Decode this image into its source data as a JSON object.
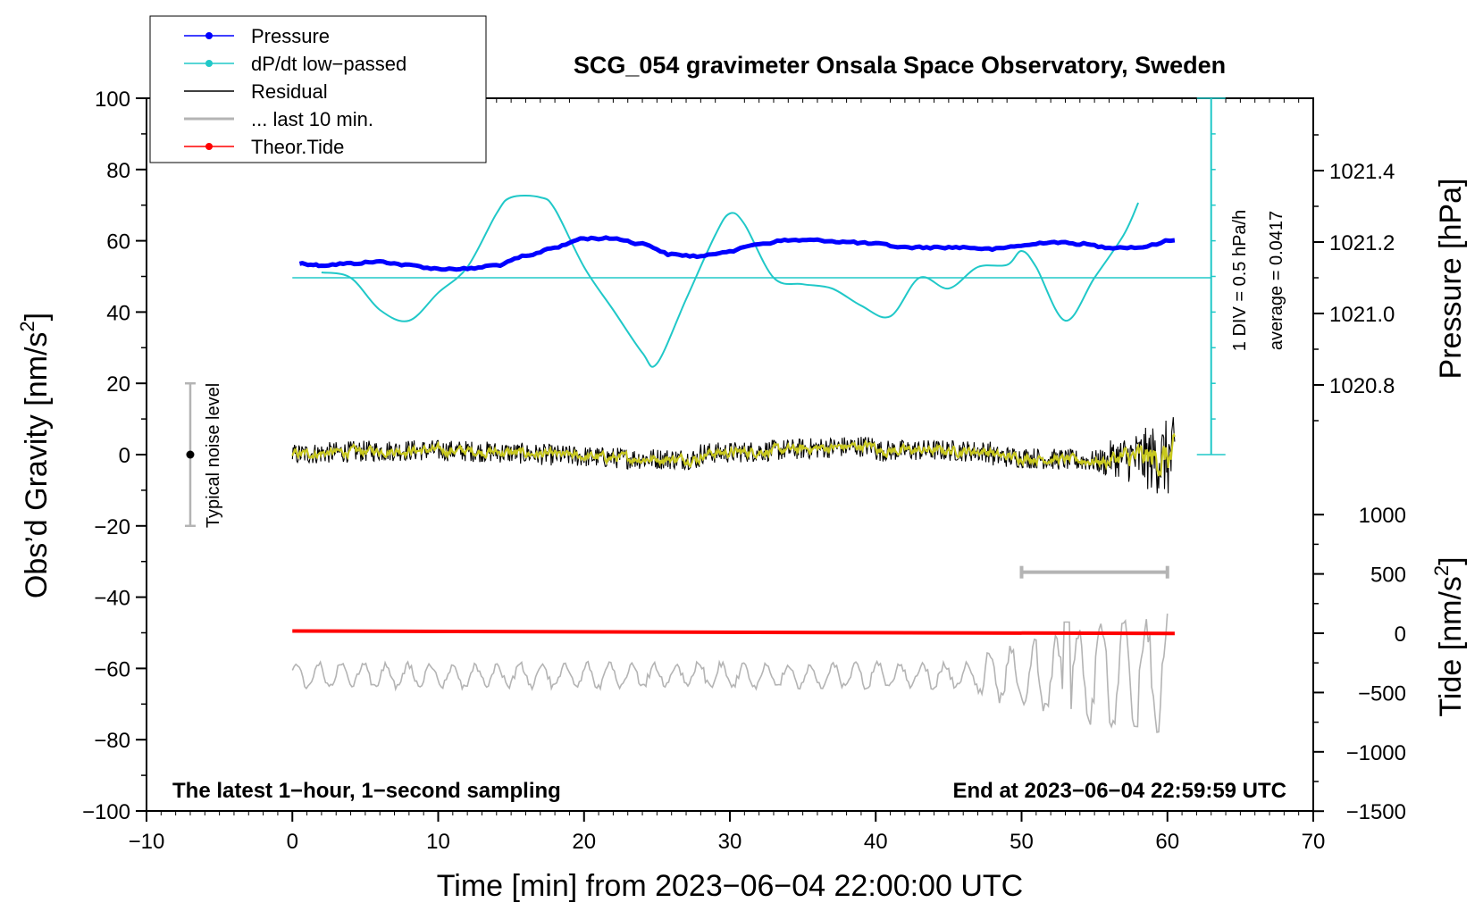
{
  "chart_data": {
    "type": "line",
    "title": "SCG_054 gravimeter Onsala Space Observatory, Sweden",
    "xlabel": "Time [min] from 2023−06−04 22:00:00 UTC",
    "ylabel_left": "Obs’d Gravity [nm/s²]",
    "ylabel_left_main": "Obs’d Gravity [nm/s",
    "ylabel_left_sup": "2",
    "ylabel_left_tail": "]",
    "ylabel_pressure": "Pressure [hPa]",
    "ylabel_tide_main": "Tide [nm/s",
    "ylabel_tide_sup": "2",
    "ylabel_tide_tail": "]",
    "xlim": [
      -10,
      70
    ],
    "ylim_left": [
      -100,
      100
    ],
    "x_ticks": [
      -10,
      0,
      10,
      20,
      30,
      40,
      50,
      60,
      70
    ],
    "x_tick_labels": [
      "−10",
      "0",
      "10",
      "20",
      "30",
      "40",
      "50",
      "60",
      "70"
    ],
    "y_ticks_left": [
      100,
      80,
      60,
      40,
      20,
      0,
      -20,
      -40,
      -60,
      -80,
      -100
    ],
    "y_tick_labels_left": [
      "100",
      "80",
      "60",
      "40",
      "20",
      "0",
      "−20",
      "−40",
      "−60",
      "−80",
      "−100"
    ],
    "pressure_axis": {
      "ticks": [
        1021.4,
        1021.2,
        1021.0,
        1020.8
      ],
      "tick_labels": [
        "1021.4",
        "1021.2",
        "1021.0",
        "1020.8"
      ],
      "range_hpa": [
        1020.6,
        1021.6
      ]
    },
    "tide_axis": {
      "ticks": [
        1000,
        500,
        0,
        -500,
        -1000,
        -1500
      ],
      "tick_labels": [
        "1000",
        "500",
        "0",
        "−500",
        "−1000",
        "−1500"
      ],
      "range": [
        -1500,
        1000
      ]
    },
    "legend": [
      {
        "label": "Pressure",
        "color": "#0000ff",
        "marker": true
      },
      {
        "label": "dP/dt low−passed",
        "color": "#20c8c8",
        "marker": true
      },
      {
        "label": "Residual",
        "color": "#000000",
        "marker": false
      },
      {
        "label": "... last 10 min.",
        "color": "#b4b4b4",
        "marker": false
      },
      {
        "label": "Theor.Tide",
        "color": "#ff0000",
        "marker": true
      }
    ],
    "series": [
      {
        "name": "Pressure",
        "unit": "hPa",
        "color": "#0000ff",
        "x": [
          0.5,
          2,
          4,
          6,
          8,
          10,
          12,
          14,
          16,
          18,
          20,
          22,
          24,
          26,
          28,
          30,
          32,
          34,
          36,
          38,
          40,
          42,
          44,
          46,
          48,
          50,
          52,
          54,
          56,
          58,
          60.5
        ],
        "values": [
          1021.14,
          1021.135,
          1021.14,
          1021.145,
          1021.135,
          1021.125,
          1021.125,
          1021.135,
          1021.16,
          1021.185,
          1021.21,
          1021.21,
          1021.195,
          1021.165,
          1021.16,
          1021.175,
          1021.195,
          1021.205,
          1021.205,
          1021.2,
          1021.195,
          1021.185,
          1021.185,
          1021.185,
          1021.18,
          1021.19,
          1021.2,
          1021.195,
          1021.185,
          1021.185,
          1021.205
        ]
      },
      {
        "name": "dP/dt low−passed",
        "unit": "hPa/h",
        "color": "#20c8c8",
        "x": [
          2,
          4,
          6,
          8,
          10,
          12,
          14,
          15,
          17,
          18,
          20,
          22,
          24,
          25,
          27,
          29,
          30,
          31,
          33,
          35,
          37,
          39,
          41,
          43,
          45,
          47,
          49,
          50,
          51,
          53,
          55,
          57,
          58
        ],
        "values": [
          0.025,
          0.0,
          -0.15,
          -0.2,
          -0.07,
          0.05,
          0.3,
          0.375,
          0.375,
          0.32,
          0.05,
          -0.15,
          -0.35,
          -0.4,
          -0.1,
          0.2,
          0.3,
          0.25,
          0.0,
          -0.03,
          -0.05,
          -0.13,
          -0.18,
          -0.0,
          -0.05,
          0.05,
          0.06,
          0.125,
          0.05,
          -0.2,
          0.0,
          0.2,
          0.35
        ]
      },
      {
        "name": "Residual",
        "unit": "nm/s²",
        "color": "#000000",
        "x_range": [
          0,
          60.5
        ],
        "band": 3,
        "end_band": 12
      },
      {
        "name": "... last 10 min.",
        "unit": "nm/s²",
        "color": "#b4b4b4",
        "x_range": [
          0,
          60
        ],
        "center": -62,
        "scale_note": "tide scale"
      },
      {
        "name": "Theor.Tide",
        "unit": "nm/s²",
        "color": "#ff0000",
        "x": [
          0,
          60.5
        ],
        "values": [
          -49.5,
          -50.2
        ]
      }
    ],
    "pressure_average_line": {
      "value_hpa": 1021.1,
      "color": "#20c8c8"
    },
    "dpdt_scale_bar": {
      "x": 63,
      "y_from": 0,
      "y_to": 100,
      "divisions": 10
    },
    "noise_bar": {
      "x": -7,
      "y": 0,
      "ymin": -20,
      "ymax": 20,
      "label": "Typical noise level"
    },
    "last_10min_bar": {
      "xmin": 50,
      "xmax": 60,
      "y": -33
    },
    "annotations": {
      "div_label": "1 DIV = 0.5 hPa/h",
      "average_label": "average = 0.0417",
      "footer_left": "The latest 1−hour, 1−second sampling",
      "footer_right": "End at 2023−06−04 22:59:59 UTC"
    }
  }
}
